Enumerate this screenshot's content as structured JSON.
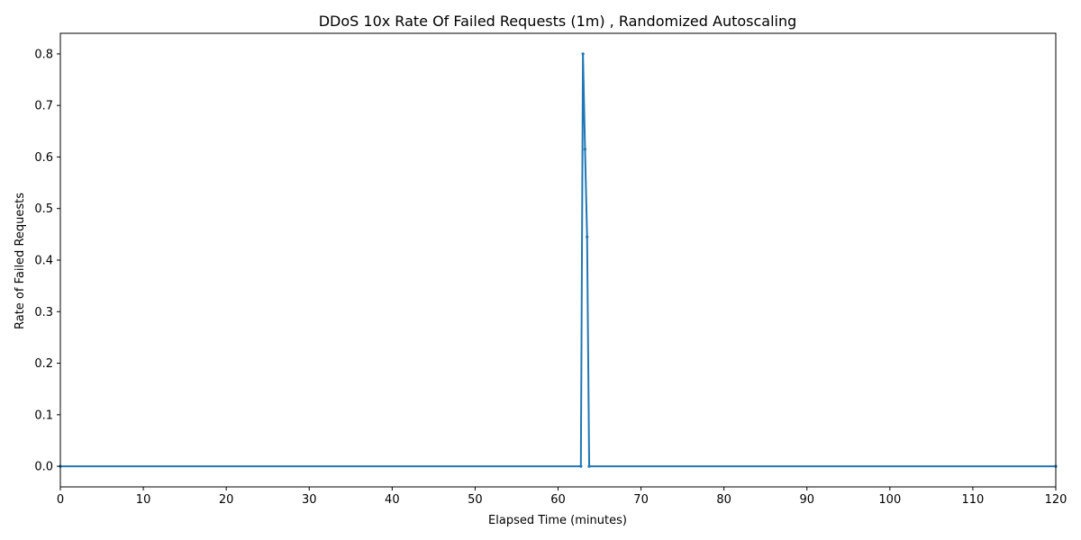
{
  "chart_data": {
    "type": "line",
    "title": "DDoS 10x Rate Of Failed Requests (1m) , Randomized Autoscaling",
    "xlabel": "Elapsed Time (minutes)",
    "ylabel": "Rate of Failed Requests",
    "xlim": [
      0,
      120
    ],
    "ylim": [
      -0.04,
      0.84
    ],
    "xticks": [
      0,
      10,
      20,
      30,
      40,
      50,
      60,
      70,
      80,
      90,
      100,
      110,
      120
    ],
    "yticks": [
      0.0,
      0.1,
      0.2,
      0.3,
      0.4,
      0.5,
      0.6,
      0.7,
      0.8
    ],
    "xtick_labels": [
      "0",
      "10",
      "20",
      "30",
      "40",
      "50",
      "60",
      "70",
      "80",
      "90",
      "100",
      "110",
      "120"
    ],
    "ytick_labels": [
      "0.0",
      "0.1",
      "0.2",
      "0.3",
      "0.4",
      "0.5",
      "0.6",
      "0.7",
      "0.8"
    ],
    "grid": false,
    "series": [
      {
        "color": "#1f77b4",
        "x": [
          0,
          62.75,
          63.0,
          63.25,
          63.5,
          63.75,
          120
        ],
        "y": [
          0,
          0,
          0.8,
          0.615,
          0.445,
          0,
          0
        ]
      }
    ]
  }
}
